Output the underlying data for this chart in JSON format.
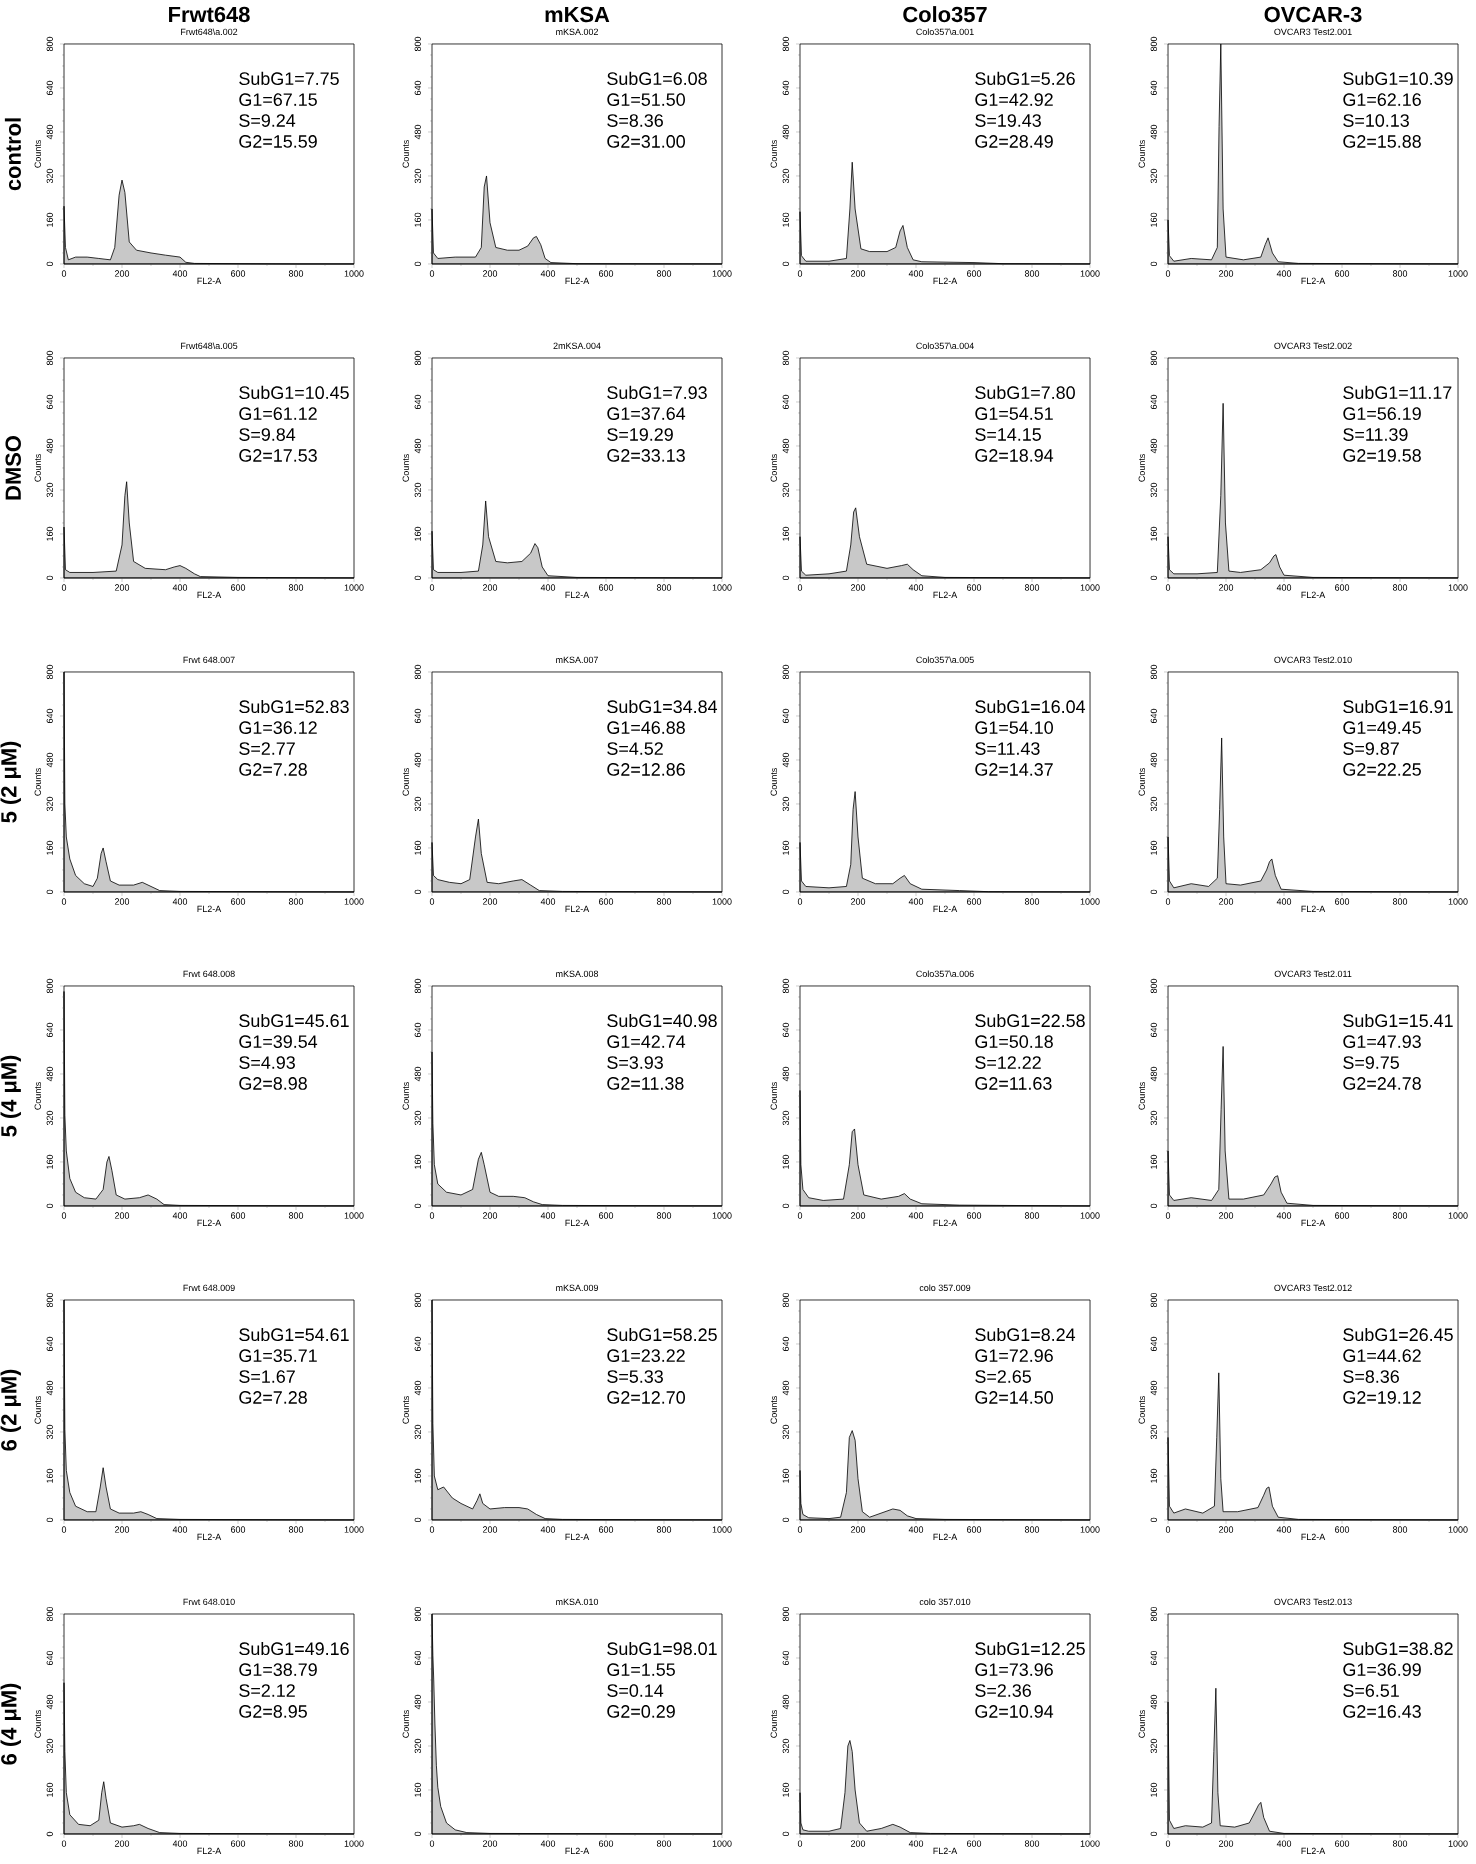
{
  "chart_data": [
    {
      "type": "area",
      "title": "Frwt648\\a.002",
      "xlabel": "FL2-A",
      "ylabel": "Counts",
      "annotations": [
        "Frwt648",
        "control",
        "SubG1=7.75",
        "G1=67.15",
        "S=9.24",
        "G2=15.59"
      ],
      "x": [
        0,
        5,
        15,
        40,
        80,
        120,
        160,
        175,
        190,
        200,
        210,
        225,
        250,
        300,
        350,
        400,
        420,
        450,
        600,
        800,
        1000
      ],
      "values": [
        210,
        60,
        15,
        25,
        25,
        20,
        15,
        60,
        250,
        305,
        260,
        80,
        50,
        40,
        32,
        25,
        6,
        2,
        1,
        0,
        0
      ],
      "color": "#c8c8c8",
      "xlim": [
        0,
        1000
      ],
      "ylim": [
        0,
        800
      ],
      "xticks": [
        0,
        200,
        400,
        600,
        800,
        1000
      ],
      "yticks": [
        0,
        160,
        320,
        480,
        640,
        800
      ]
    },
    {
      "type": "area",
      "title": "mKSA.002",
      "xlabel": "FL2-A",
      "ylabel": "Counts",
      "annotations": [
        "mKSA",
        "SubG1=6.08",
        "G1=51.50",
        "S=8.36",
        "G2=31.00"
      ],
      "x": [
        0,
        5,
        20,
        80,
        150,
        170,
        180,
        188,
        200,
        220,
        260,
        300,
        330,
        350,
        360,
        375,
        390,
        410,
        500,
        1000
      ],
      "values": [
        200,
        40,
        20,
        25,
        25,
        60,
        280,
        320,
        150,
        60,
        50,
        50,
        65,
        95,
        100,
        70,
        20,
        5,
        1,
        0
      ],
      "color": "#c8c8c8",
      "xlim": [
        0,
        1000
      ],
      "ylim": [
        0,
        800
      ],
      "xticks": [
        0,
        200,
        400,
        600,
        800,
        1000
      ],
      "yticks": [
        0,
        160,
        320,
        480,
        640,
        800
      ]
    },
    {
      "type": "area",
      "title": "Colo357\\a.001",
      "xlabel": "FL2-A",
      "ylabel": "Counts",
      "annotations": [
        "Colo357",
        "SubG1=5.26",
        "G1=42.92",
        "S=19.43",
        "G2=28.49"
      ],
      "x": [
        0,
        5,
        20,
        100,
        160,
        172,
        180,
        190,
        210,
        240,
        300,
        330,
        345,
        355,
        370,
        390,
        420,
        600,
        700,
        1000
      ],
      "values": [
        190,
        30,
        10,
        10,
        20,
        200,
        370,
        200,
        55,
        45,
        45,
        60,
        120,
        140,
        60,
        15,
        8,
        5,
        1,
        0
      ],
      "color": "#c8c8c8",
      "xlim": [
        0,
        1000
      ],
      "ylim": [
        0,
        800
      ],
      "xticks": [
        0,
        200,
        400,
        600,
        800,
        1000
      ],
      "yticks": [
        0,
        160,
        320,
        480,
        640,
        800
      ]
    },
    {
      "type": "area",
      "title": "OVCAR3 Test2.001",
      "xlabel": "FL2-A",
      "ylabel": "Counts",
      "annotations": [
        "OVCAR-3",
        "SubG1=10.39",
        "G1=62.16",
        "S=10.13",
        "G2=15.88"
      ],
      "x": [
        0,
        5,
        20,
        80,
        150,
        170,
        176,
        182,
        190,
        200,
        260,
        320,
        335,
        345,
        360,
        380,
        450,
        1000
      ],
      "values": [
        160,
        30,
        10,
        20,
        15,
        60,
        500,
        800,
        200,
        25,
        15,
        25,
        70,
        95,
        40,
        8,
        2,
        0
      ],
      "color": "#c8c8c8",
      "xlim": [
        0,
        1000
      ],
      "ylim": [
        0,
        800
      ],
      "xticks": [
        0,
        200,
        400,
        600,
        800,
        1000
      ],
      "yticks": [
        0,
        160,
        320,
        480,
        640,
        800
      ]
    },
    {
      "type": "area",
      "title": "Frwt648\\a.005",
      "xlabel": "FL2-A",
      "ylabel": "Counts",
      "annotations": [
        "DMSO",
        "SubG1=10.45",
        "G1=61.12",
        "S=9.84",
        "G2=17.53"
      ],
      "x": [
        0,
        5,
        20,
        100,
        180,
        200,
        210,
        216,
        225,
        240,
        280,
        350,
        380,
        400,
        420,
        450,
        470,
        600,
        1000
      ],
      "values": [
        185,
        30,
        20,
        20,
        25,
        120,
        300,
        350,
        200,
        60,
        35,
        30,
        40,
        45,
        35,
        15,
        5,
        2,
        0
      ],
      "color": "#c8c8c8",
      "xlim": [
        0,
        1000
      ],
      "ylim": [
        0,
        800
      ],
      "xticks": [
        0,
        200,
        400,
        600,
        800,
        1000
      ],
      "yticks": [
        0,
        160,
        320,
        480,
        640,
        800
      ]
    },
    {
      "type": "area",
      "title": "2mKSA.004",
      "xlabel": "FL2-A",
      "ylabel": "Counts",
      "annotations": [
        "SubG1=7.93",
        "G1=37.64",
        "S=19.29",
        "G2=33.13"
      ],
      "x": [
        0,
        5,
        20,
        100,
        160,
        175,
        185,
        195,
        220,
        260,
        310,
        340,
        355,
        365,
        380,
        400,
        500,
        1000
      ],
      "values": [
        170,
        30,
        20,
        20,
        25,
        120,
        280,
        150,
        60,
        55,
        60,
        90,
        125,
        110,
        40,
        8,
        2,
        0
      ],
      "color": "#c8c8c8",
      "xlim": [
        0,
        1000
      ],
      "ylim": [
        0,
        800
      ],
      "xticks": [
        0,
        200,
        400,
        600,
        800,
        1000
      ],
      "yticks": [
        0,
        160,
        320,
        480,
        640,
        800
      ]
    },
    {
      "type": "area",
      "title": "Colo357\\a.004",
      "xlabel": "FL2-A",
      "ylabel": "Counts",
      "annotations": [
        "SubG1=7.80",
        "G1=54.51",
        "S=14.15",
        "G2=18.94"
      ],
      "x": [
        0,
        5,
        20,
        100,
        160,
        175,
        185,
        192,
        205,
        230,
        300,
        350,
        370,
        390,
        420,
        500,
        1000
      ],
      "values": [
        150,
        25,
        10,
        15,
        25,
        120,
        240,
        255,
        150,
        50,
        35,
        45,
        50,
        30,
        8,
        2,
        0
      ],
      "color": "#c8c8c8",
      "xlim": [
        0,
        1000
      ],
      "ylim": [
        0,
        800
      ],
      "xticks": [
        0,
        200,
        400,
        600,
        800,
        1000
      ],
      "yticks": [
        0,
        160,
        320,
        480,
        640,
        800
      ]
    },
    {
      "type": "area",
      "title": "OVCAR3 Test2.002",
      "xlabel": "FL2-A",
      "ylabel": "Counts",
      "annotations": [
        "SubG1=11.17",
        "G1=56.19",
        "S=11.39",
        "G2=19.58"
      ],
      "x": [
        0,
        5,
        20,
        100,
        170,
        182,
        190,
        198,
        210,
        250,
        320,
        350,
        365,
        372,
        385,
        400,
        500,
        1000
      ],
      "values": [
        150,
        30,
        15,
        15,
        20,
        300,
        635,
        200,
        25,
        20,
        30,
        55,
        80,
        85,
        40,
        10,
        2,
        0
      ],
      "color": "#c8c8c8",
      "xlim": [
        0,
        1000
      ],
      "ylim": [
        0,
        800
      ],
      "xticks": [
        0,
        200,
        400,
        600,
        800,
        1000
      ],
      "yticks": [
        0,
        160,
        320,
        480,
        640,
        800
      ]
    },
    {
      "type": "area",
      "title": "Frwt 648.007",
      "xlabel": "FL2-A",
      "ylabel": "Counts",
      "annotations": [
        "5 (2 μM)",
        "SubG1=52.83",
        "G1=36.12",
        "S=2.77",
        "G2=7.28"
      ],
      "x": [
        0,
        3,
        8,
        20,
        40,
        70,
        100,
        115,
        128,
        135,
        145,
        160,
        190,
        240,
        270,
        300,
        330,
        400,
        1000
      ],
      "values": [
        800,
        320,
        200,
        120,
        60,
        30,
        20,
        50,
        140,
        160,
        110,
        40,
        25,
        25,
        35,
        20,
        5,
        2,
        0
      ],
      "color": "#c8c8c8",
      "xlim": [
        0,
        1000
      ],
      "ylim": [
        0,
        800
      ],
      "xticks": [
        0,
        200,
        400,
        600,
        800,
        1000
      ],
      "yticks": [
        0,
        160,
        320,
        480,
        640,
        800
      ]
    },
    {
      "type": "area",
      "title": "mKSA.007",
      "xlabel": "FL2-A",
      "ylabel": "Counts",
      "annotations": [
        "SubG1=34.84",
        "G1=46.88",
        "S=4.52",
        "G2=12.86"
      ],
      "x": [
        0,
        5,
        20,
        60,
        100,
        130,
        150,
        160,
        170,
        190,
        230,
        280,
        310,
        340,
        370,
        450,
        1000
      ],
      "values": [
        180,
        60,
        45,
        35,
        30,
        45,
        200,
        265,
        140,
        35,
        30,
        40,
        45,
        25,
        5,
        2,
        0
      ],
      "color": "#c8c8c8",
      "xlim": [
        0,
        1000
      ],
      "ylim": [
        0,
        800
      ],
      "xticks": [
        0,
        200,
        400,
        600,
        800,
        1000
      ],
      "yticks": [
        0,
        160,
        320,
        480,
        640,
        800
      ]
    },
    {
      "type": "area",
      "title": "Colo357\\a.005",
      "xlabel": "FL2-A",
      "ylabel": "Counts",
      "annotations": [
        "SubG1=16.04",
        "G1=54.10",
        "S=11.43",
        "G2=14.37"
      ],
      "x": [
        0,
        5,
        20,
        100,
        160,
        175,
        183,
        190,
        200,
        215,
        260,
        320,
        345,
        360,
        380,
        420,
        550,
        650,
        1000
      ],
      "values": [
        180,
        40,
        20,
        15,
        20,
        100,
        300,
        365,
        200,
        50,
        30,
        30,
        50,
        60,
        30,
        10,
        5,
        1,
        0
      ],
      "color": "#c8c8c8",
      "xlim": [
        0,
        1000
      ],
      "ylim": [
        0,
        800
      ],
      "xticks": [
        0,
        200,
        400,
        600,
        800,
        1000
      ],
      "yticks": [
        0,
        160,
        320,
        480,
        640,
        800
      ]
    },
    {
      "type": "area",
      "title": "OVCAR3 Test2.010",
      "xlabel": "FL2-A",
      "ylabel": "Counts",
      "annotations": [
        "SubG1=16.91",
        "G1=49.45",
        "S=9.87",
        "G2=22.25"
      ],
      "x": [
        0,
        5,
        20,
        80,
        140,
        170,
        178,
        185,
        192,
        200,
        250,
        320,
        340,
        350,
        358,
        370,
        390,
        500,
        1000
      ],
      "values": [
        200,
        40,
        15,
        30,
        20,
        50,
        300,
        560,
        200,
        30,
        25,
        40,
        80,
        110,
        120,
        60,
        10,
        2,
        0
      ],
      "color": "#c8c8c8",
      "xlim": [
        0,
        1000
      ],
      "ylim": [
        0,
        800
      ],
      "xticks": [
        0,
        200,
        400,
        600,
        800,
        1000
      ],
      "yticks": [
        0,
        160,
        320,
        480,
        640,
        800
      ]
    },
    {
      "type": "area",
      "title": "Frwt 648.008",
      "xlabel": "FL2-A",
      "ylabel": "Counts",
      "annotations": [
        "5 (4 μM)",
        "SubG1=45.61",
        "G1=39.54",
        "S=4.93",
        "G2=8.98"
      ],
      "x": [
        0,
        3,
        8,
        20,
        40,
        70,
        110,
        135,
        148,
        155,
        165,
        180,
        210,
        260,
        290,
        320,
        345,
        400,
        1000
      ],
      "values": [
        780,
        330,
        200,
        100,
        50,
        30,
        25,
        60,
        160,
        180,
        130,
        40,
        25,
        30,
        40,
        25,
        5,
        2,
        0
      ],
      "color": "#c8c8c8",
      "xlim": [
        0,
        1000
      ],
      "ylim": [
        0,
        800
      ],
      "xticks": [
        0,
        200,
        400,
        600,
        800,
        1000
      ],
      "yticks": [
        0,
        160,
        320,
        480,
        640,
        800
      ]
    },
    {
      "type": "area",
      "title": "mKSA.008",
      "xlabel": "FL2-A",
      "ylabel": "Counts",
      "annotations": [
        "SubG1=40.98",
        "G1=42.74",
        "S=3.93",
        "G2=11.38"
      ],
      "x": [
        0,
        3,
        8,
        20,
        50,
        100,
        140,
        160,
        170,
        180,
        200,
        230,
        280,
        320,
        350,
        380,
        450,
        1000
      ],
      "values": [
        560,
        300,
        150,
        80,
        50,
        40,
        60,
        170,
        195,
        150,
        50,
        35,
        35,
        30,
        15,
        5,
        2,
        0
      ],
      "color": "#c8c8c8",
      "xlim": [
        0,
        1000
      ],
      "ylim": [
        0,
        800
      ],
      "xticks": [
        0,
        200,
        400,
        600,
        800,
        1000
      ],
      "yticks": [
        0,
        160,
        320,
        480,
        640,
        800
      ]
    },
    {
      "type": "area",
      "title": "Colo357\\a.006",
      "xlabel": "FL2-A",
      "ylabel": "Counts",
      "annotations": [
        "SubG1=22.58",
        "G1=50.18",
        "S=12.22",
        "G2=11.63"
      ],
      "x": [
        0,
        3,
        10,
        30,
        80,
        150,
        170,
        180,
        188,
        200,
        220,
        280,
        340,
        360,
        380,
        420,
        550,
        1000
      ],
      "values": [
        420,
        150,
        60,
        30,
        20,
        25,
        150,
        270,
        280,
        150,
        40,
        25,
        35,
        45,
        25,
        8,
        3,
        0
      ],
      "color": "#c8c8c8",
      "xlim": [
        0,
        1000
      ],
      "ylim": [
        0,
        800
      ],
      "xticks": [
        0,
        200,
        400,
        600,
        800,
        1000
      ],
      "yticks": [
        0,
        160,
        320,
        480,
        640,
        800
      ]
    },
    {
      "type": "area",
      "title": "OVCAR3 Test2.011",
      "xlabel": "FL2-A",
      "ylabel": "Counts",
      "annotations": [
        "SubG1=15.41",
        "G1=47.93",
        "S=9.75",
        "G2=24.78"
      ],
      "x": [
        0,
        5,
        20,
        80,
        150,
        175,
        183,
        190,
        197,
        210,
        260,
        330,
        355,
        368,
        378,
        390,
        410,
        500,
        1000
      ],
      "values": [
        200,
        40,
        20,
        30,
        20,
        60,
        350,
        580,
        200,
        25,
        25,
        40,
        80,
        105,
        110,
        50,
        10,
        2,
        0
      ],
      "color": "#c8c8c8",
      "xlim": [
        0,
        1000
      ],
      "ylim": [
        0,
        800
      ],
      "xticks": [
        0,
        200,
        400,
        600,
        800,
        1000
      ],
      "yticks": [
        0,
        160,
        320,
        480,
        640,
        800
      ]
    },
    {
      "type": "area",
      "title": "Frwt 648.009",
      "xlabel": "FL2-A",
      "ylabel": "Counts",
      "annotations": [
        "6 (2 μM)",
        "SubG1=54.61",
        "G1=35.71",
        "S=1.67",
        "G2=7.28"
      ],
      "x": [
        0,
        3,
        8,
        20,
        40,
        80,
        110,
        125,
        135,
        145,
        160,
        190,
        240,
        265,
        290,
        320,
        400,
        1000
      ],
      "values": [
        800,
        330,
        180,
        100,
        50,
        30,
        30,
        120,
        190,
        120,
        40,
        25,
        25,
        30,
        20,
        5,
        2,
        0
      ],
      "color": "#c8c8c8",
      "xlim": [
        0,
        1000
      ],
      "ylim": [
        0,
        800
      ],
      "xticks": [
        0,
        200,
        400,
        600,
        800,
        1000
      ],
      "yticks": [
        0,
        160,
        320,
        480,
        640,
        800
      ]
    },
    {
      "type": "area",
      "title": "mKSA.009",
      "xlabel": "FL2-A",
      "ylabel": "Counts",
      "annotations": [
        "SubG1=58.25",
        "G1=23.22",
        "S=5.33",
        "G2=12.70"
      ],
      "x": [
        0,
        3,
        8,
        20,
        40,
        70,
        100,
        140,
        155,
        165,
        175,
        200,
        250,
        300,
        330,
        360,
        390,
        450,
        1000
      ],
      "values": [
        800,
        350,
        160,
        110,
        120,
        80,
        60,
        40,
        70,
        95,
        60,
        40,
        45,
        45,
        40,
        20,
        5,
        2,
        0
      ],
      "color": "#c8c8c8",
      "xlim": [
        0,
        1000
      ],
      "ylim": [
        0,
        800
      ],
      "xticks": [
        0,
        200,
        400,
        600,
        800,
        1000
      ],
      "yticks": [
        0,
        160,
        320,
        480,
        640,
        800
      ]
    },
    {
      "type": "area",
      "title": "colo 357.009",
      "xlabel": "FL2-A",
      "ylabel": "Counts",
      "annotations": [
        "SubG1=8.24",
        "G1=72.96",
        "S=2.65",
        "G2=14.50"
      ],
      "x": [
        0,
        3,
        10,
        30,
        100,
        140,
        160,
        170,
        180,
        190,
        200,
        215,
        240,
        280,
        320,
        345,
        370,
        400,
        500,
        1000
      ],
      "values": [
        180,
        60,
        20,
        8,
        5,
        10,
        100,
        300,
        325,
        290,
        150,
        30,
        10,
        25,
        40,
        35,
        15,
        5,
        2,
        0
      ],
      "color": "#c8c8c8",
      "xlim": [
        0,
        1000
      ],
      "ylim": [
        0,
        800
      ],
      "xticks": [
        0,
        200,
        400,
        600,
        800,
        1000
      ],
      "yticks": [
        0,
        160,
        320,
        480,
        640,
        800
      ]
    },
    {
      "type": "area",
      "title": "OVCAR3 Test2.012",
      "xlabel": "FL2-A",
      "ylabel": "Counts",
      "annotations": [
        "SubG1=26.45",
        "G1=44.62",
        "S=8.36",
        "G2=19.12"
      ],
      "x": [
        0,
        5,
        20,
        60,
        120,
        160,
        168,
        175,
        182,
        190,
        240,
        310,
        330,
        340,
        348,
        360,
        380,
        450,
        1000
      ],
      "values": [
        300,
        50,
        25,
        40,
        25,
        50,
        300,
        535,
        150,
        30,
        30,
        45,
        90,
        115,
        120,
        50,
        10,
        2,
        0
      ],
      "color": "#c8c8c8",
      "xlim": [
        0,
        1000
      ],
      "ylim": [
        0,
        800
      ],
      "xticks": [
        0,
        200,
        400,
        600,
        800,
        1000
      ],
      "yticks": [
        0,
        160,
        320,
        480,
        640,
        800
      ]
    },
    {
      "type": "area",
      "title": "Frwt 648.010",
      "xlabel": "FL2-A",
      "ylabel": "Counts",
      "annotations": [
        "6 (4 μM)",
        "SubG1=49.16",
        "G1=38.79",
        "S=2.12",
        "G2=8.95"
      ],
      "x": [
        0,
        3,
        8,
        20,
        50,
        90,
        120,
        130,
        137,
        145,
        160,
        200,
        240,
        260,
        290,
        330,
        400,
        1000
      ],
      "values": [
        550,
        300,
        150,
        70,
        35,
        30,
        50,
        150,
        190,
        130,
        40,
        25,
        30,
        35,
        20,
        5,
        2,
        0
      ],
      "color": "#c8c8c8",
      "xlim": [
        0,
        1000
      ],
      "ylim": [
        0,
        800
      ],
      "xticks": [
        0,
        200,
        400,
        600,
        800,
        1000
      ],
      "yticks": [
        0,
        160,
        320,
        480,
        640,
        800
      ]
    },
    {
      "type": "area",
      "title": "mKSA.010",
      "xlabel": "FL2-A",
      "ylabel": "Counts",
      "annotations": [
        "SubG1=98.01",
        "G1=1.55",
        "S=0.14",
        "G2=0.29"
      ],
      "x": [
        0,
        3,
        6,
        10,
        15,
        20,
        30,
        50,
        80,
        120,
        200,
        1000
      ],
      "values": [
        800,
        650,
        560,
        400,
        250,
        170,
        100,
        40,
        15,
        5,
        2,
        0
      ],
      "color": "#c8c8c8",
      "xlim": [
        0,
        1000
      ],
      "ylim": [
        0,
        800
      ],
      "xticks": [
        0,
        200,
        400,
        600,
        800,
        1000
      ],
      "yticks": [
        0,
        160,
        320,
        480,
        640,
        800
      ]
    },
    {
      "type": "area",
      "title": "colo 357.010",
      "xlabel": "FL2-A",
      "ylabel": "Counts",
      "annotations": [
        "SubG1=12.25",
        "G1=73.96",
        "S=2.36",
        "G2=10.94"
      ],
      "x": [
        0,
        3,
        10,
        30,
        100,
        140,
        155,
        165,
        172,
        180,
        190,
        205,
        230,
        280,
        320,
        345,
        380,
        450,
        1000
      ],
      "values": [
        150,
        40,
        15,
        10,
        10,
        20,
        150,
        320,
        340,
        300,
        160,
        40,
        10,
        20,
        35,
        25,
        5,
        2,
        0
      ],
      "color": "#c8c8c8",
      "xlim": [
        0,
        1000
      ],
      "ylim": [
        0,
        800
      ],
      "xticks": [
        0,
        200,
        400,
        600,
        800,
        1000
      ],
      "yticks": [
        0,
        160,
        320,
        480,
        640,
        800
      ]
    },
    {
      "type": "area",
      "title": "OVCAR3 Test2.013",
      "xlabel": "FL2-A",
      "ylabel": "Counts",
      "annotations": [
        "SubG1=38.82",
        "G1=36.99",
        "S=6.51",
        "G2=16.43"
      ],
      "x": [
        0,
        5,
        20,
        60,
        120,
        150,
        158,
        165,
        172,
        180,
        230,
        280,
        300,
        312,
        320,
        330,
        350,
        400,
        1000
      ],
      "values": [
        480,
        50,
        20,
        30,
        25,
        40,
        300,
        530,
        150,
        30,
        25,
        40,
        80,
        105,
        115,
        60,
        10,
        2,
        0
      ],
      "color": "#c8c8c8",
      "xlim": [
        0,
        1000
      ],
      "ylim": [
        0,
        800
      ],
      "xticks": [
        0,
        200,
        400,
        600,
        800,
        1000
      ],
      "yticks": [
        0,
        160,
        320,
        480,
        640,
        800
      ]
    }
  ]
}
